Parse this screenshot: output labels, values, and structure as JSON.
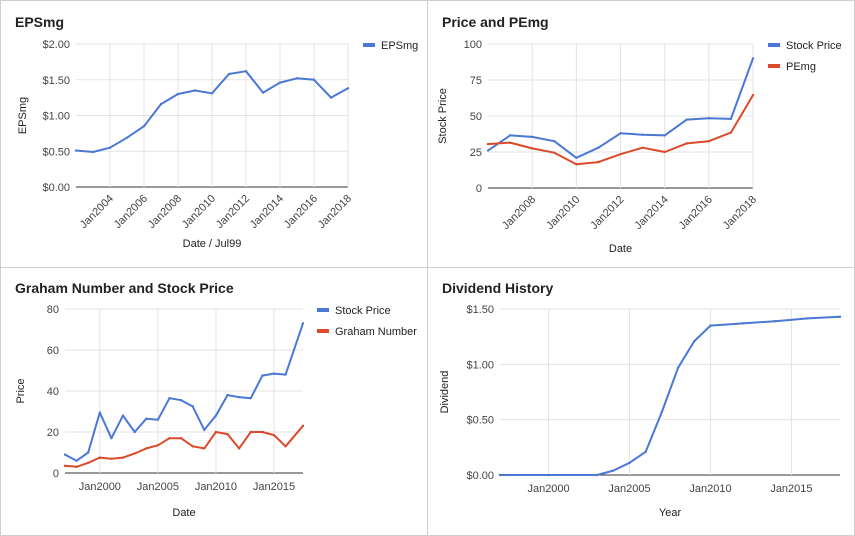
{
  "chart_data": [
    {
      "type": "line",
      "title": "EPSmg",
      "xlabel": "Date / Jul99",
      "ylabel": "EPSmg",
      "x_type": "year",
      "xlim": [
        2002,
        2018
      ],
      "ylim": [
        0,
        2
      ],
      "y_ticks": [
        "$0.00",
        "$0.50",
        "$1.00",
        "$1.50",
        "$2.00"
      ],
      "x_ticks": [
        "Jan2004",
        "Jan2006",
        "Jan2008",
        "Jan2010",
        "Jan2012",
        "Jan2014",
        "Jan2016",
        "Jan2018"
      ],
      "legend": "right",
      "grid": true,
      "series": [
        {
          "name": "EPSmg",
          "color": "#4a78d4",
          "x": [
            2002,
            2003,
            2004,
            2005,
            2006,
            2007,
            2008,
            2009,
            2010,
            2011,
            2012,
            2013,
            2014,
            2015,
            2016,
            2017,
            2018
          ],
          "values": [
            0.51,
            0.49,
            0.55,
            0.69,
            0.85,
            1.16,
            1.3,
            1.35,
            1.31,
            1.58,
            1.62,
            1.32,
            1.46,
            1.52,
            1.5,
            1.25,
            1.38
          ]
        }
      ]
    },
    {
      "type": "line",
      "title": "Price and PEmg",
      "xlabel": "Date",
      "ylabel": "Stock Price",
      "x_type": "year",
      "xlim": [
        2006,
        2018
      ],
      "ylim": [
        0,
        100
      ],
      "y_ticks": [
        "0",
        "25",
        "50",
        "75",
        "100"
      ],
      "x_ticks": [
        "Jan2008",
        "Jan2010",
        "Jan2012",
        "Jan2014",
        "Jan2016",
        "Jan2018"
      ],
      "legend": "right",
      "grid": true,
      "series": [
        {
          "name": "Stock Price",
          "color": "#4a78d4",
          "x": [
            2006,
            2007,
            2008,
            2009,
            2010,
            2011,
            2012,
            2013,
            2014,
            2015,
            2016,
            2017,
            2018
          ],
          "values": [
            26,
            36.5,
            35.5,
            32.5,
            21,
            28,
            38,
            37,
            36.5,
            47.5,
            48.5,
            48,
            90
          ]
        },
        {
          "name": "PEmg",
          "color": "#db4a2b",
          "x": [
            2006,
            2007,
            2008,
            2009,
            2010,
            2011,
            2012,
            2013,
            2014,
            2015,
            2016,
            2017,
            2018
          ],
          "values": [
            30.5,
            31.5,
            27.5,
            24.5,
            16.5,
            18,
            23.5,
            28,
            25,
            31,
            32.5,
            38.5,
            64.5
          ]
        }
      ]
    },
    {
      "type": "line",
      "title": "Graham Number and Stock Price",
      "xlabel": "Date",
      "ylabel": "Price",
      "x_type": "year",
      "xlim": [
        1997,
        2017.5
      ],
      "ylim": [
        0,
        80
      ],
      "y_ticks": [
        "0",
        "20",
        "40",
        "60",
        "80"
      ],
      "x_ticks": [
        "Jan2000",
        "Jan2005",
        "Jan2010",
        "Jan2015"
      ],
      "legend": "right",
      "grid": true,
      "series": [
        {
          "name": "Stock Price",
          "color": "#4a78d4",
          "x": [
            1997,
            1998,
            1999,
            2000,
            2001,
            2002,
            2003,
            2004,
            2005,
            2006,
            2007,
            2008,
            2009,
            2010,
            2011,
            2012,
            2013,
            2014,
            2015,
            2016,
            2017.5
          ],
          "values": [
            9,
            6,
            10,
            29.5,
            17,
            28,
            20,
            26.5,
            26,
            36.5,
            35.5,
            32.5,
            21,
            28,
            38,
            37,
            36.5,
            47.5,
            48.5,
            48,
            73
          ]
        },
        {
          "name": "Graham Number",
          "color": "#db4a2b",
          "x": [
            1997,
            1998,
            1999,
            2000,
            2001,
            2002,
            2003,
            2004,
            2005,
            2006,
            2007,
            2008,
            2009,
            2010,
            2011,
            2012,
            2013,
            2014,
            2015,
            2016,
            2017.5
          ],
          "values": [
            3.5,
            3,
            5,
            7.5,
            7,
            7.5,
            9.5,
            12,
            13.5,
            17,
            17,
            13,
            12,
            20,
            19,
            12,
            20,
            20,
            18.5,
            13,
            23
          ]
        }
      ]
    },
    {
      "type": "line",
      "title": "Dividend History",
      "xlabel": "Year",
      "ylabel": "Dividend",
      "x_type": "year",
      "xlim": [
        1997,
        2018
      ],
      "ylim": [
        0,
        1.5
      ],
      "y_ticks": [
        "$0.00",
        "$0.50",
        "$1.00",
        "$1.50"
      ],
      "x_ticks": [
        "Jan2000",
        "Jan2005",
        "Jan2010",
        "Jan2015"
      ],
      "grid": true,
      "series": [
        {
          "color": "#4a78d4",
          "x": [
            1997,
            2000,
            2003,
            2004,
            2005,
            2006,
            2007,
            2008,
            2009,
            2010,
            2012,
            2014,
            2016,
            2018
          ],
          "values": [
            0,
            0,
            0,
            0.04,
            0.11,
            0.21,
            0.57,
            0.97,
            1.21,
            1.35,
            1.37,
            1.39,
            1.415,
            1.43
          ]
        }
      ]
    }
  ]
}
